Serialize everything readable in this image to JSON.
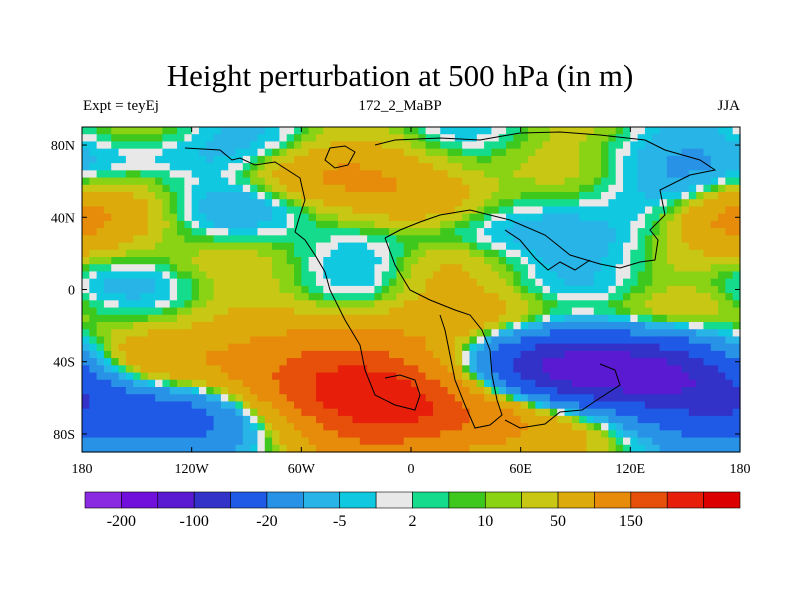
{
  "chart_data": {
    "type": "heatmap",
    "title": "Height perturbation at 500 hPa (in m)",
    "left_label": "Expt = teyEj",
    "center_label": "172_2_MaBP",
    "right_label": "JJA",
    "x_ticks": [
      {
        "value": -180,
        "label": "180"
      },
      {
        "value": -120,
        "label": "120W"
      },
      {
        "value": -60,
        "label": "60W"
      },
      {
        "value": 0,
        "label": "0"
      },
      {
        "value": 60,
        "label": "60E"
      },
      {
        "value": 120,
        "label": "120E"
      },
      {
        "value": 180,
        "label": "180"
      }
    ],
    "y_ticks": [
      {
        "value": 80,
        "label": "80N"
      },
      {
        "value": 40,
        "label": "40N"
      },
      {
        "value": 0,
        "label": "0"
      },
      {
        "value": -40,
        "label": "40S"
      },
      {
        "value": -80,
        "label": "80S"
      }
    ],
    "xlim": [
      -180,
      180
    ],
    "ylim": [
      -90,
      90
    ],
    "colorbar": {
      "colors": [
        "#8a2be2",
        "#7010da",
        "#5a1ad2",
        "#3232c8",
        "#1e5ae6",
        "#2892e6",
        "#28b4e6",
        "#10c8e0",
        "#e8e8e8",
        "#14dc8c",
        "#3ec81e",
        "#8ad214",
        "#c8c814",
        "#dcaa0a",
        "#e68c0a",
        "#e6500a",
        "#e61e0a",
        "#dc0000"
      ],
      "tick_labels": [
        {
          "after_bin": 1,
          "label": "-200"
        },
        {
          "after_bin": 3,
          "label": "-100"
        },
        {
          "after_bin": 5,
          "label": "-20"
        },
        {
          "after_bin": 7,
          "label": "-5"
        },
        {
          "after_bin": 9,
          "label": "2"
        },
        {
          "after_bin": 11,
          "label": "10"
        },
        {
          "after_bin": 13,
          "label": "50"
        },
        {
          "after_bin": 15,
          "label": "150"
        }
      ]
    },
    "features": [
      {
        "name": "atlantic-sh-high",
        "lon": -5,
        "lat": -58,
        "w": 55,
        "h": 22,
        "a": 200
      },
      {
        "name": "sw-atlantic-high",
        "lon": -55,
        "lat": -48,
        "w": 40,
        "h": 18,
        "a": 40
      },
      {
        "name": "e-pacific-sh-high",
        "lon": -150,
        "lat": -40,
        "w": 30,
        "h": 14,
        "a": 60
      },
      {
        "name": "e-pacific-sh-low",
        "lon": -130,
        "lat": -70,
        "w": 50,
        "h": 14,
        "a": -90
      },
      {
        "name": "indian-ocean-low",
        "lon": 85,
        "lat": -45,
        "w": 55,
        "h": 14,
        "a": -220
      },
      {
        "name": "s-pacific-low",
        "lon": 160,
        "lat": -55,
        "w": 35,
        "h": 16,
        "a": -60
      },
      {
        "name": "tropical-south-high",
        "lon": 90,
        "lat": -14,
        "w": 60,
        "h": 8,
        "a": 18
      },
      {
        "name": "n-pacific-high",
        "lon": -165,
        "lat": 38,
        "w": 28,
        "h": 14,
        "a": 30
      },
      {
        "name": "n-america-trough",
        "lon": -95,
        "lat": 45,
        "w": 25,
        "h": 12,
        "a": -25
      },
      {
        "name": "arctic-low-west",
        "lon": -150,
        "lat": 73,
        "w": 40,
        "h": 9,
        "a": -15
      },
      {
        "name": "greenland-high",
        "lon": -45,
        "lat": 62,
        "w": 35,
        "h": 10,
        "a": 45
      },
      {
        "name": "atlantic-high",
        "lon": -20,
        "lat": 36,
        "w": 35,
        "h": 10,
        "a": 10
      },
      {
        "name": "europe-high",
        "lon": 5,
        "lat": 50,
        "w": 25,
        "h": 10,
        "a": 30
      },
      {
        "name": "arctic-ridge",
        "lon": 45,
        "lat": 70,
        "w": 60,
        "h": 12,
        "a": 12
      },
      {
        "name": "asia-low",
        "lon": 50,
        "lat": 32,
        "w": 50,
        "h": 10,
        "a": -15
      },
      {
        "name": "siberia-low",
        "lon": 150,
        "lat": 58,
        "w": 30,
        "h": 12,
        "a": -18
      },
      {
        "name": "nw-pacific-high",
        "lon": 175,
        "lat": 40,
        "w": 20,
        "h": 12,
        "a": 40
      },
      {
        "name": "arctic-low-east",
        "lon": 100,
        "lat": 76,
        "w": 30,
        "h": 8,
        "a": -8
      },
      {
        "name": "africa-high",
        "lon": 15,
        "lat": 10,
        "w": 20,
        "h": 12,
        "a": 12
      },
      {
        "name": "east-pacific-tropic",
        "lon": -120,
        "lat": 12,
        "w": 30,
        "h": 10,
        "a": 12
      },
      {
        "name": "tropical-north-low",
        "lon": -150,
        "lat": 5,
        "w": 50,
        "h": 8,
        "a": -8
      }
    ]
  }
}
